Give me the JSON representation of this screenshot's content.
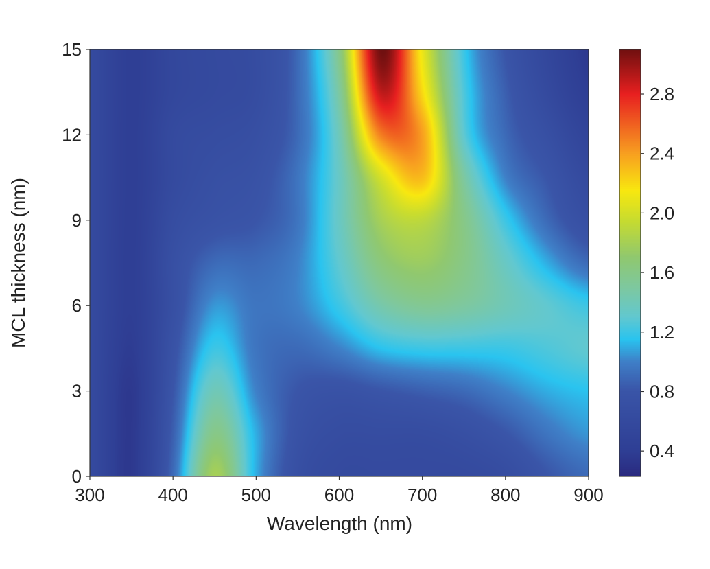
{
  "chart_data": {
    "type": "heatmap",
    "xlabel": "Wavelength (nm)",
    "ylabel": "MCL thickness (nm)",
    "xlim": [
      300,
      900
    ],
    "ylim": [
      0,
      15
    ],
    "xticks": [
      "300",
      "400",
      "500",
      "600",
      "700",
      "800",
      "900"
    ],
    "yticks": [
      "0",
      "3",
      "6",
      "9",
      "12",
      "15"
    ],
    "colorbar": {
      "range": [
        0.23,
        3.1
      ],
      "ticks": [
        "0.4",
        "0.8",
        "1.2",
        "1.6",
        "2.0",
        "2.4",
        "2.8"
      ],
      "colormap": "jet-like",
      "stops": [
        [
          0.23,
          "#2a2a80"
        ],
        [
          0.4,
          "#2f3f95"
        ],
        [
          0.8,
          "#3a55a8"
        ],
        [
          1.0,
          "#3f80c8"
        ],
        [
          1.15,
          "#2ac4f0"
        ],
        [
          1.3,
          "#62c8d0"
        ],
        [
          1.5,
          "#7ec8a0"
        ],
        [
          1.7,
          "#90c870"
        ],
        [
          1.95,
          "#c8dc30"
        ],
        [
          2.15,
          "#f8e810"
        ],
        [
          2.4,
          "#f8a020"
        ],
        [
          2.6,
          "#f06020"
        ],
        [
          2.8,
          "#e82020"
        ],
        [
          3.1,
          "#701010"
        ]
      ]
    },
    "x": [
      300,
      350,
      400,
      450,
      500,
      550,
      600,
      650,
      700,
      750,
      800,
      850,
      900
    ],
    "y": [
      0,
      1.5,
      3,
      4.5,
      6,
      7.5,
      9,
      10.5,
      12,
      13.5,
      15
    ],
    "z": [
      [
        0.6,
        0.35,
        0.9,
        1.8,
        1.1,
        0.7,
        0.6,
        0.6,
        0.6,
        0.6,
        0.65,
        0.8,
        0.9
      ],
      [
        0.6,
        0.35,
        0.85,
        1.6,
        1.1,
        0.75,
        0.65,
        0.65,
        0.65,
        0.7,
        0.8,
        0.95,
        1.05
      ],
      [
        0.6,
        0.35,
        0.8,
        1.4,
        1.0,
        0.8,
        0.75,
        0.8,
        0.85,
        0.9,
        1.0,
        1.1,
        1.15
      ],
      [
        0.6,
        0.38,
        0.75,
        1.2,
        0.95,
        0.9,
        1.0,
        1.15,
        1.2,
        1.2,
        1.2,
        1.25,
        1.3
      ],
      [
        0.6,
        0.4,
        0.7,
        1.05,
        0.95,
        1.0,
        1.2,
        1.45,
        1.55,
        1.5,
        1.4,
        1.3,
        1.2
      ],
      [
        0.6,
        0.4,
        0.7,
        0.9,
        0.9,
        1.0,
        1.3,
        1.65,
        1.75,
        1.6,
        1.35,
        1.1,
        0.9
      ],
      [
        0.6,
        0.4,
        0.65,
        0.75,
        0.8,
        0.95,
        1.35,
        1.8,
        1.9,
        1.6,
        1.2,
        0.9,
        0.7
      ],
      [
        0.6,
        0.4,
        0.6,
        0.7,
        0.75,
        0.95,
        1.35,
        2.0,
        2.3,
        1.5,
        1.0,
        0.8,
        0.6
      ],
      [
        0.6,
        0.4,
        0.6,
        0.65,
        0.7,
        0.9,
        1.4,
        2.5,
        2.4,
        1.3,
        0.9,
        0.7,
        0.5
      ],
      [
        0.6,
        0.4,
        0.55,
        0.6,
        0.65,
        0.9,
        1.5,
        2.9,
        2.2,
        1.25,
        0.85,
        0.6,
        0.4
      ],
      [
        0.6,
        0.4,
        0.55,
        0.6,
        0.65,
        0.9,
        1.6,
        3.1,
        2.1,
        1.2,
        0.8,
        0.55,
        0.35
      ]
    ]
  }
}
